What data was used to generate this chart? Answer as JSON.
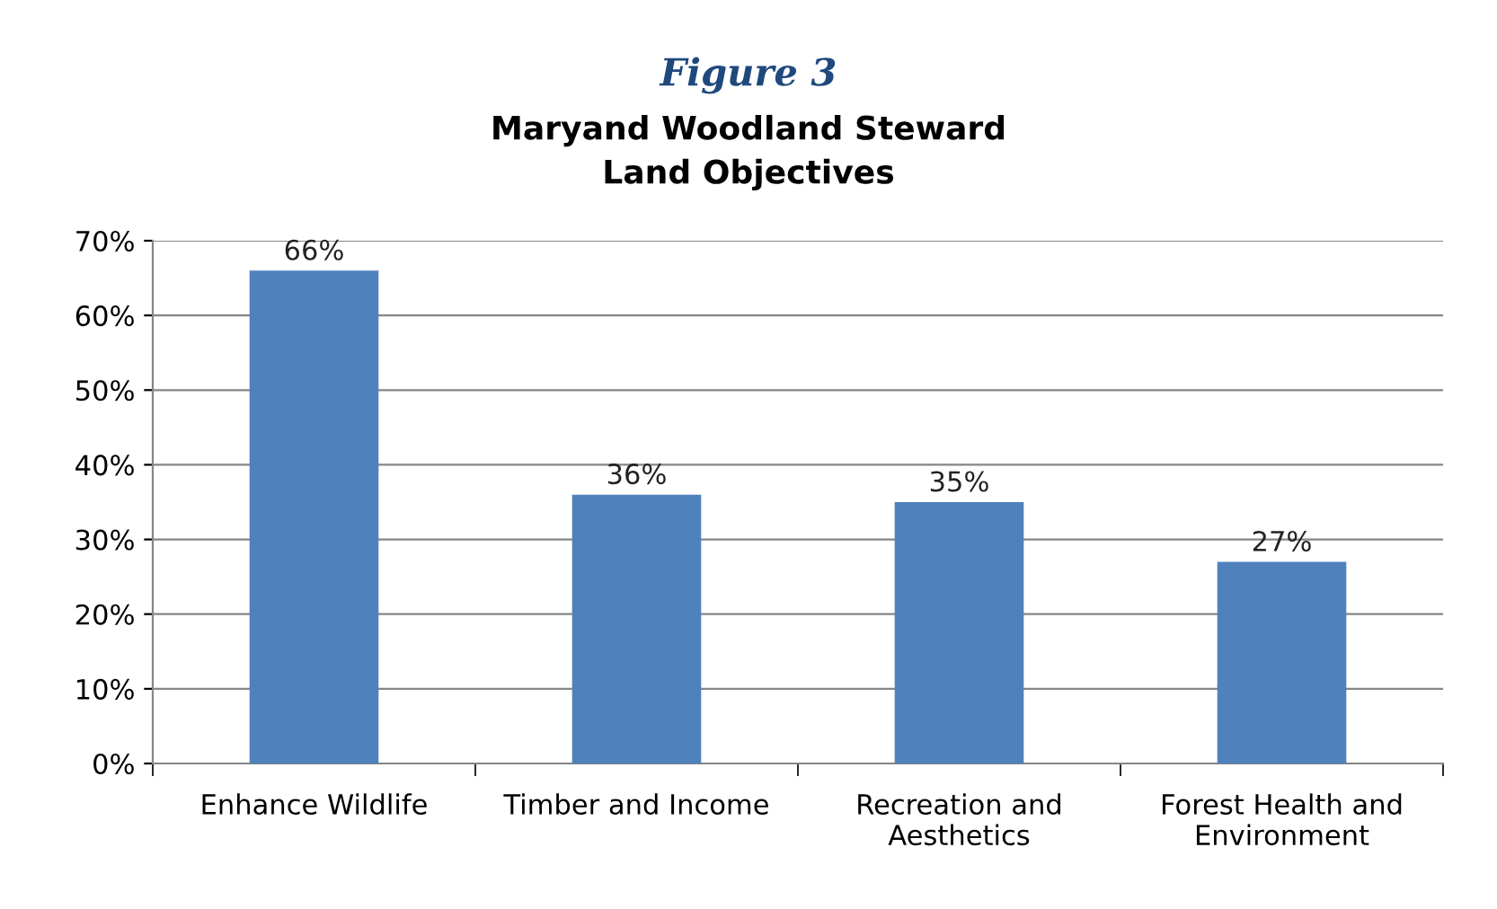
{
  "chart_data": {
    "type": "bar",
    "title": "Figure 3",
    "subtitle": "Maryand Woodland Steward\nLand Objectives",
    "categories": [
      "Enhance Wildlife",
      "Timber and Income",
      "Recreation and\nAesthetics",
      "Forest Health and\nEnvironment"
    ],
    "values": [
      66,
      36,
      35,
      27
    ],
    "color": "#4f81bd",
    "value_labels": [
      "66%",
      "36%",
      "35%",
      "27%"
    ],
    "ylim": [
      0,
      70
    ],
    "yticks": [
      {
        "value": 0,
        "label": "0%"
      },
      {
        "value": 10,
        "label": "10%"
      },
      {
        "value": 20,
        "label": "20%"
      },
      {
        "value": 30,
        "label": "30%"
      },
      {
        "value": 40,
        "label": "40%"
      },
      {
        "value": 50,
        "label": "50%"
      },
      {
        "value": 60,
        "label": "60%"
      },
      {
        "value": 70,
        "label": "70%"
      }
    ],
    "grid": "y",
    "legend": false
  }
}
